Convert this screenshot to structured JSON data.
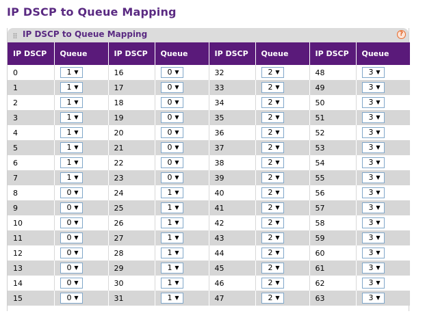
{
  "page": {
    "title": "IP DSCP to Queue Mapping"
  },
  "panel": {
    "title": "IP DSCP to Queue Mapping",
    "help_icon": "?"
  },
  "table": {
    "headers": [
      {
        "dscp": "IP DSCP",
        "queue": "Queue"
      },
      {
        "dscp": "IP DSCP",
        "queue": "Queue"
      },
      {
        "dscp": "IP DSCP",
        "queue": "Queue"
      },
      {
        "dscp": "IP DSCP",
        "queue": "Queue"
      }
    ],
    "rows": [
      [
        {
          "dscp": "0",
          "queue": "1"
        },
        {
          "dscp": "16",
          "queue": "0"
        },
        {
          "dscp": "32",
          "queue": "2"
        },
        {
          "dscp": "48",
          "queue": "3"
        }
      ],
      [
        {
          "dscp": "1",
          "queue": "1"
        },
        {
          "dscp": "17",
          "queue": "0"
        },
        {
          "dscp": "33",
          "queue": "2"
        },
        {
          "dscp": "49",
          "queue": "3"
        }
      ],
      [
        {
          "dscp": "2",
          "queue": "1"
        },
        {
          "dscp": "18",
          "queue": "0"
        },
        {
          "dscp": "34",
          "queue": "2"
        },
        {
          "dscp": "50",
          "queue": "3"
        }
      ],
      [
        {
          "dscp": "3",
          "queue": "1"
        },
        {
          "dscp": "19",
          "queue": "0"
        },
        {
          "dscp": "35",
          "queue": "2"
        },
        {
          "dscp": "51",
          "queue": "3"
        }
      ],
      [
        {
          "dscp": "4",
          "queue": "1"
        },
        {
          "dscp": "20",
          "queue": "0"
        },
        {
          "dscp": "36",
          "queue": "2"
        },
        {
          "dscp": "52",
          "queue": "3"
        }
      ],
      [
        {
          "dscp": "5",
          "queue": "1"
        },
        {
          "dscp": "21",
          "queue": "0"
        },
        {
          "dscp": "37",
          "queue": "2"
        },
        {
          "dscp": "53",
          "queue": "3"
        }
      ],
      [
        {
          "dscp": "6",
          "queue": "1"
        },
        {
          "dscp": "22",
          "queue": "0"
        },
        {
          "dscp": "38",
          "queue": "2"
        },
        {
          "dscp": "54",
          "queue": "3"
        }
      ],
      [
        {
          "dscp": "7",
          "queue": "1"
        },
        {
          "dscp": "23",
          "queue": "0"
        },
        {
          "dscp": "39",
          "queue": "2"
        },
        {
          "dscp": "55",
          "queue": "3"
        }
      ],
      [
        {
          "dscp": "8",
          "queue": "0"
        },
        {
          "dscp": "24",
          "queue": "1"
        },
        {
          "dscp": "40",
          "queue": "2"
        },
        {
          "dscp": "56",
          "queue": "3"
        }
      ],
      [
        {
          "dscp": "9",
          "queue": "0"
        },
        {
          "dscp": "25",
          "queue": "1"
        },
        {
          "dscp": "41",
          "queue": "2"
        },
        {
          "dscp": "57",
          "queue": "3"
        }
      ],
      [
        {
          "dscp": "10",
          "queue": "0"
        },
        {
          "dscp": "26",
          "queue": "1"
        },
        {
          "dscp": "42",
          "queue": "2"
        },
        {
          "dscp": "58",
          "queue": "3"
        }
      ],
      [
        {
          "dscp": "11",
          "queue": "0"
        },
        {
          "dscp": "27",
          "queue": "1"
        },
        {
          "dscp": "43",
          "queue": "2"
        },
        {
          "dscp": "59",
          "queue": "3"
        }
      ],
      [
        {
          "dscp": "12",
          "queue": "0"
        },
        {
          "dscp": "28",
          "queue": "1"
        },
        {
          "dscp": "44",
          "queue": "2"
        },
        {
          "dscp": "60",
          "queue": "3"
        }
      ],
      [
        {
          "dscp": "13",
          "queue": "0"
        },
        {
          "dscp": "29",
          "queue": "1"
        },
        {
          "dscp": "45",
          "queue": "2"
        },
        {
          "dscp": "61",
          "queue": "3"
        }
      ],
      [
        {
          "dscp": "14",
          "queue": "0"
        },
        {
          "dscp": "30",
          "queue": "1"
        },
        {
          "dscp": "46",
          "queue": "2"
        },
        {
          "dscp": "62",
          "queue": "3"
        }
      ],
      [
        {
          "dscp": "15",
          "queue": "0"
        },
        {
          "dscp": "31",
          "queue": "1"
        },
        {
          "dscp": "47",
          "queue": "2"
        },
        {
          "dscp": "63",
          "queue": "3"
        }
      ]
    ]
  },
  "icons": {
    "grip": "drag-grip-icon",
    "help": "help-icon",
    "dropdown": "chevron-down-icon"
  },
  "colors": {
    "title": "#5a2a82",
    "header_bg": "#5a1a7a",
    "header_text": "#ffffff",
    "row_alt": "#d6d6d6",
    "select_border": "#7fa6c9",
    "help_icon": "#e05a1a"
  }
}
